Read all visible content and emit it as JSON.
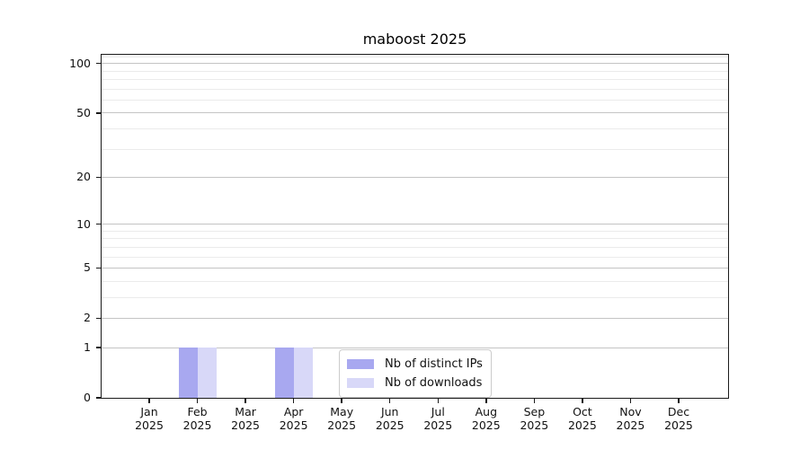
{
  "chart_data": {
    "type": "bar",
    "title": "maboost 2025",
    "categories": [
      "Jan",
      "Feb",
      "Mar",
      "Apr",
      "May",
      "Jun",
      "Jul",
      "Aug",
      "Sep",
      "Oct",
      "Nov",
      "Dec"
    ],
    "x_year": "2025",
    "series": [
      {
        "name": "Nb of distinct IPs",
        "color": "#a8a8f0",
        "values": [
          0,
          1,
          0,
          1,
          0,
          0,
          0,
          0,
          0,
          0,
          0,
          0
        ]
      },
      {
        "name": "Nb of downloads",
        "color": "#d8d8f8",
        "values": [
          0,
          1,
          0,
          1,
          0,
          0,
          0,
          0,
          0,
          0,
          0,
          0
        ]
      }
    ],
    "yscale": "log1p",
    "ylim": [
      0,
      113
    ],
    "y_major_ticks": [
      0,
      1,
      2,
      5,
      10,
      20,
      50,
      100
    ],
    "y_minor_ticks": [
      3,
      4,
      6,
      7,
      8,
      9,
      30,
      40,
      60,
      70,
      80,
      90,
      110
    ],
    "grid": true,
    "legend_position": "lower center",
    "colors": {
      "grid_major": "#c4c4c4",
      "grid_minor": "#ebebeb",
      "axis": "#1a1a1a",
      "text": "#111111"
    }
  }
}
